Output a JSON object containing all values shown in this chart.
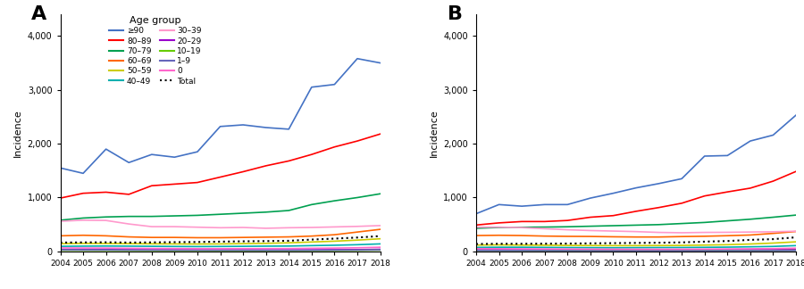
{
  "years": [
    2004,
    2005,
    2006,
    2007,
    2008,
    2009,
    2010,
    2011,
    2012,
    2013,
    2014,
    2015,
    2016,
    2017,
    2018
  ],
  "panel_A": {
    "ge90": [
      1550,
      1450,
      1900,
      1650,
      1800,
      1750,
      1850,
      2320,
      2350,
      2300,
      2270,
      3050,
      3100,
      3580,
      3500
    ],
    "80_89": [
      990,
      1080,
      1100,
      1060,
      1220,
      1250,
      1280,
      1380,
      1480,
      1590,
      1680,
      1800,
      1940,
      2050,
      2180
    ],
    "70_79": [
      580,
      620,
      640,
      650,
      650,
      660,
      670,
      690,
      710,
      730,
      760,
      870,
      940,
      1000,
      1070
    ],
    "60_69": [
      290,
      300,
      290,
      270,
      260,
      260,
      255,
      255,
      260,
      265,
      270,
      285,
      310,
      360,
      410
    ],
    "50_59": [
      145,
      150,
      148,
      145,
      142,
      140,
      138,
      140,
      145,
      150,
      160,
      175,
      190,
      210,
      235
    ],
    "40_49": [
      95,
      98,
      100,
      98,
      95,
      92,
      90,
      92,
      95,
      98,
      100,
      108,
      115,
      125,
      140
    ],
    "30_39": [
      560,
      580,
      575,
      510,
      460,
      460,
      450,
      440,
      445,
      430,
      440,
      445,
      455,
      465,
      480
    ],
    "20_29": [
      35,
      36,
      34,
      32,
      30,
      29,
      28,
      28,
      28,
      27,
      28,
      29,
      31,
      34,
      40
    ],
    "10_19": [
      22,
      21,
      20,
      19,
      18,
      17,
      17,
      16,
      16,
      16,
      16,
      17,
      18,
      20,
      24
    ],
    "1_9": [
      30,
      28,
      28,
      26,
      25,
      24,
      23,
      22,
      22,
      21,
      21,
      22,
      24,
      26,
      30
    ],
    "0": [
      65,
      63,
      62,
      58,
      55,
      53,
      50,
      50,
      52,
      52,
      53,
      58,
      62,
      68,
      78
    ],
    "total": [
      165,
      168,
      170,
      165,
      168,
      172,
      175,
      182,
      188,
      192,
      198,
      220,
      238,
      258,
      285
    ]
  },
  "panel_B": {
    "ge90": [
      700,
      870,
      840,
      870,
      870,
      990,
      1080,
      1180,
      1260,
      1350,
      1770,
      1780,
      2050,
      2160,
      2530
    ],
    "80_89": [
      490,
      530,
      555,
      555,
      575,
      635,
      665,
      745,
      815,
      895,
      1030,
      1105,
      1175,
      1305,
      1485
    ],
    "70_79": [
      430,
      445,
      448,
      452,
      458,
      468,
      478,
      488,
      498,
      518,
      538,
      568,
      598,
      635,
      675
    ],
    "60_69": [
      295,
      300,
      295,
      285,
      280,
      278,
      272,
      268,
      268,
      276,
      282,
      292,
      305,
      335,
      370
    ],
    "50_59": [
      118,
      122,
      118,
      116,
      112,
      110,
      108,
      108,
      110,
      112,
      118,
      125,
      138,
      155,
      178
    ],
    "40_49": [
      75,
      78,
      78,
      75,
      72,
      70,
      68,
      70,
      72,
      73,
      76,
      80,
      86,
      93,
      108
    ],
    "30_39": [
      450,
      452,
      442,
      422,
      402,
      388,
      378,
      368,
      353,
      347,
      353,
      355,
      360,
      365,
      375
    ],
    "20_29": [
      30,
      30,
      29,
      28,
      26,
      26,
      26,
      25,
      25,
      25,
      26,
      27,
      29,
      32,
      38
    ],
    "10_19": [
      20,
      19,
      18,
      17,
      16,
      16,
      15,
      15,
      14,
      14,
      15,
      16,
      17,
      19,
      22
    ],
    "1_9": [
      18,
      17,
      17,
      16,
      15,
      14,
      14,
      13,
      13,
      13,
      13,
      14,
      15,
      16,
      18
    ],
    "0": [
      52,
      50,
      48,
      46,
      44,
      42,
      41,
      40,
      40,
      41,
      43,
      46,
      49,
      53,
      60
    ],
    "total": [
      138,
      142,
      142,
      144,
      146,
      150,
      154,
      158,
      162,
      168,
      182,
      193,
      215,
      228,
      262
    ]
  },
  "colors": {
    "ge90": "#4472C4",
    "80_89": "#FF0000",
    "70_79": "#00A050",
    "60_69": "#FF6600",
    "50_59": "#CCCC00",
    "40_49": "#00B0B0",
    "30_39": "#FF99CC",
    "20_29": "#9900CC",
    "10_19": "#66CC00",
    "1_9": "#6666BB",
    "0": "#FF66CC",
    "total": "#000000"
  },
  "legend_labels": {
    "ge90": "≥90",
    "80_89": "80–89",
    "70_79": "70–79",
    "60_69": "60–69",
    "50_59": "50–59",
    "40_49": "40–49",
    "30_39": "30–39",
    "20_29": "20–29",
    "10_19": "10–19",
    "1_9": "1–9",
    "0": "0",
    "total": "Total"
  },
  "ylim": [
    0,
    4400
  ],
  "yticks": [
    0,
    1000,
    2000,
    3000,
    4000
  ],
  "ylabel": "Incidence",
  "panel_labels": [
    "A",
    "B"
  ],
  "legend_title": "Age group"
}
